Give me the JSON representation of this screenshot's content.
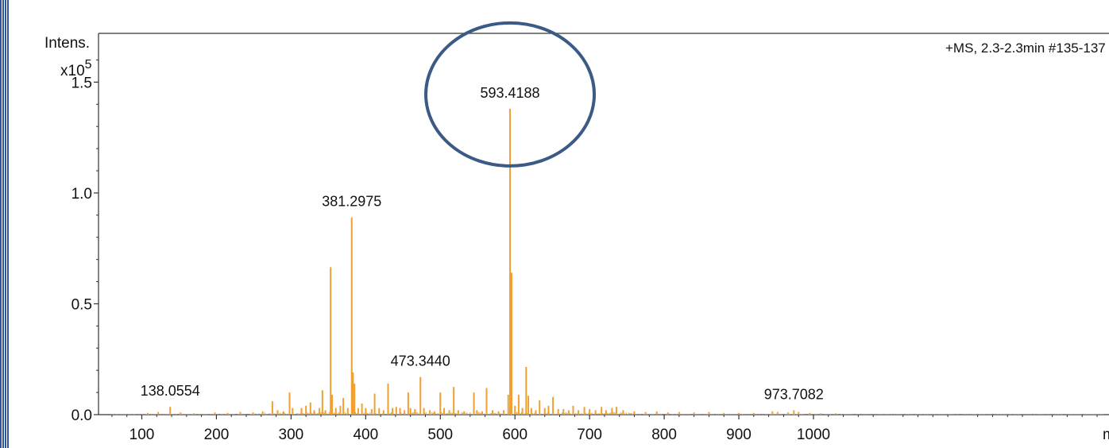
{
  "chart_data": {
    "type": "bar",
    "title": "",
    "ylabel_line1": "Intens.",
    "ylabel_line2_base": "x10",
    "ylabel_line2_exp": "5",
    "xlabel": "m/z",
    "info": "+MS, 2.3-2.3min #135-137",
    "xlim": [
      42,
      1396
    ],
    "ylim": [
      0,
      1.72
    ],
    "x_ticks": [
      100,
      200,
      300,
      400,
      500,
      600,
      700,
      800,
      900,
      1000
    ],
    "y_ticks": [
      "0.0",
      "0.5",
      "1.0",
      "1.5"
    ],
    "peak_labels": [
      {
        "text": "138.0554",
        "x": 138.0554,
        "y": 0.035
      },
      {
        "text": "381.2975",
        "x": 381.2975,
        "y": 0.89
      },
      {
        "text": "473.3440",
        "x": 473.344,
        "y": 0.17
      },
      {
        "text": "593.4188",
        "x": 593.4188,
        "y": 1.38
      },
      {
        "text": "973.7082",
        "x": 973.7082,
        "y": 0.02
      }
    ],
    "highlight": {
      "x": 593.4188,
      "y": 1.38,
      "color": "#3b5a86"
    },
    "series_color": "#f0a030",
    "peaks": [
      {
        "x": 108,
        "y": 0.008
      },
      {
        "x": 122,
        "y": 0.012
      },
      {
        "x": 138.0554,
        "y": 0.035
      },
      {
        "x": 152,
        "y": 0.01
      },
      {
        "x": 170,
        "y": 0.006
      },
      {
        "x": 198,
        "y": 0.01
      },
      {
        "x": 215,
        "y": 0.008
      },
      {
        "x": 232,
        "y": 0.012
      },
      {
        "x": 249,
        "y": 0.01
      },
      {
        "x": 262,
        "y": 0.015
      },
      {
        "x": 275,
        "y": 0.06
      },
      {
        "x": 282,
        "y": 0.02
      },
      {
        "x": 290,
        "y": 0.015
      },
      {
        "x": 298,
        "y": 0.1
      },
      {
        "x": 302,
        "y": 0.03
      },
      {
        "x": 314,
        "y": 0.03
      },
      {
        "x": 320,
        "y": 0.04
      },
      {
        "x": 326,
        "y": 0.055
      },
      {
        "x": 331,
        "y": 0.02
      },
      {
        "x": 338,
        "y": 0.03
      },
      {
        "x": 342,
        "y": 0.11
      },
      {
        "x": 346,
        "y": 0.02
      },
      {
        "x": 353,
        "y": 0.665
      },
      {
        "x": 355,
        "y": 0.09
      },
      {
        "x": 360,
        "y": 0.03
      },
      {
        "x": 366,
        "y": 0.04
      },
      {
        "x": 370,
        "y": 0.075
      },
      {
        "x": 376,
        "y": 0.03
      },
      {
        "x": 381.2975,
        "y": 0.89
      },
      {
        "x": 383,
        "y": 0.19
      },
      {
        "x": 385,
        "y": 0.14
      },
      {
        "x": 390,
        "y": 0.03
      },
      {
        "x": 395,
        "y": 0.05
      },
      {
        "x": 400,
        "y": 0.03
      },
      {
        "x": 408,
        "y": 0.025
      },
      {
        "x": 412,
        "y": 0.095
      },
      {
        "x": 418,
        "y": 0.03
      },
      {
        "x": 424,
        "y": 0.02
      },
      {
        "x": 430,
        "y": 0.14
      },
      {
        "x": 436,
        "y": 0.03
      },
      {
        "x": 441,
        "y": 0.035
      },
      {
        "x": 446,
        "y": 0.03
      },
      {
        "x": 452,
        "y": 0.02
      },
      {
        "x": 457,
        "y": 0.1
      },
      {
        "x": 460,
        "y": 0.03
      },
      {
        "x": 466,
        "y": 0.025
      },
      {
        "x": 473.344,
        "y": 0.17
      },
      {
        "x": 478,
        "y": 0.03
      },
      {
        "x": 486,
        "y": 0.02
      },
      {
        "x": 492,
        "y": 0.015
      },
      {
        "x": 500,
        "y": 0.1
      },
      {
        "x": 505,
        "y": 0.03
      },
      {
        "x": 512,
        "y": 0.02
      },
      {
        "x": 518,
        "y": 0.125
      },
      {
        "x": 524,
        "y": 0.02
      },
      {
        "x": 532,
        "y": 0.015
      },
      {
        "x": 545,
        "y": 0.1
      },
      {
        "x": 549,
        "y": 0.02
      },
      {
        "x": 556,
        "y": 0.015
      },
      {
        "x": 562,
        "y": 0.12
      },
      {
        "x": 570,
        "y": 0.02
      },
      {
        "x": 578,
        "y": 0.015
      },
      {
        "x": 585,
        "y": 0.02
      },
      {
        "x": 591,
        "y": 0.09
      },
      {
        "x": 593.4188,
        "y": 1.38
      },
      {
        "x": 595.5,
        "y": 0.64
      },
      {
        "x": 600,
        "y": 0.04
      },
      {
        "x": 605,
        "y": 0.09
      },
      {
        "x": 610,
        "y": 0.03
      },
      {
        "x": 615,
        "y": 0.215
      },
      {
        "x": 618,
        "y": 0.085
      },
      {
        "x": 622,
        "y": 0.03
      },
      {
        "x": 628,
        "y": 0.02
      },
      {
        "x": 633,
        "y": 0.065
      },
      {
        "x": 640,
        "y": 0.03
      },
      {
        "x": 645,
        "y": 0.04
      },
      {
        "x": 651,
        "y": 0.08
      },
      {
        "x": 658,
        "y": 0.025
      },
      {
        "x": 665,
        "y": 0.025
      },
      {
        "x": 672,
        "y": 0.02
      },
      {
        "x": 678,
        "y": 0.04
      },
      {
        "x": 685,
        "y": 0.02
      },
      {
        "x": 693,
        "y": 0.035
      },
      {
        "x": 700,
        "y": 0.025
      },
      {
        "x": 708,
        "y": 0.02
      },
      {
        "x": 716,
        "y": 0.035
      },
      {
        "x": 722,
        "y": 0.02
      },
      {
        "x": 730,
        "y": 0.03
      },
      {
        "x": 736,
        "y": 0.035
      },
      {
        "x": 745,
        "y": 0.02
      },
      {
        "x": 760,
        "y": 0.015
      },
      {
        "x": 775,
        "y": 0.012
      },
      {
        "x": 790,
        "y": 0.015
      },
      {
        "x": 805,
        "y": 0.01
      },
      {
        "x": 820,
        "y": 0.012
      },
      {
        "x": 840,
        "y": 0.01
      },
      {
        "x": 860,
        "y": 0.012
      },
      {
        "x": 880,
        "y": 0.008
      },
      {
        "x": 900,
        "y": 0.008
      },
      {
        "x": 920,
        "y": 0.008
      },
      {
        "x": 945,
        "y": 0.015
      },
      {
        "x": 952,
        "y": 0.012
      },
      {
        "x": 966,
        "y": 0.01
      },
      {
        "x": 973.7082,
        "y": 0.02
      },
      {
        "x": 980,
        "y": 0.012
      },
      {
        "x": 995,
        "y": 0.008
      },
      {
        "x": 1010,
        "y": 0.006
      },
      {
        "x": 1030,
        "y": 0.006
      }
    ]
  }
}
